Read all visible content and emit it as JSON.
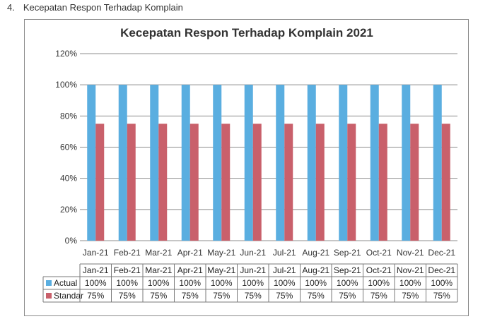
{
  "doc": {
    "number": "4.",
    "heading": "Kecepatan Respon Terhadap Komplain"
  },
  "colors": {
    "actual": "#5aaee0",
    "standar": "#c9606b",
    "grid": "#8c8c8c",
    "table_border": "#7a7a7a"
  },
  "chart_data": {
    "type": "bar",
    "title": "Kecepatan Respon Terhadap Komplain 2021",
    "xlabel": "",
    "ylabel": "",
    "categories": [
      "Jan-21",
      "Feb-21",
      "Mar-21",
      "Apr-21",
      "May-21",
      "Jun-21",
      "Jul-21",
      "Aug-21",
      "Sep-21",
      "Oct-21",
      "Nov-21",
      "Dec-21"
    ],
    "series": [
      {
        "name": "Actual",
        "values": [
          100,
          100,
          100,
          100,
          100,
          100,
          100,
          100,
          100,
          100,
          100,
          100
        ],
        "labels": [
          "100%",
          "100%",
          "100%",
          "100%",
          "100%",
          "100%",
          "100%",
          "100%",
          "100%",
          "100%",
          "100%",
          "100%"
        ]
      },
      {
        "name": "Standar",
        "values": [
          75,
          75,
          75,
          75,
          75,
          75,
          75,
          75,
          75,
          75,
          75,
          75
        ],
        "labels": [
          "75%",
          "75%",
          "75%",
          "75%",
          "75%",
          "75%",
          "75%",
          "75%",
          "75%",
          "75%",
          "75%",
          "75%"
        ]
      }
    ],
    "ylim": [
      0,
      120
    ],
    "yticks": [
      0,
      20,
      40,
      60,
      80,
      100,
      120
    ],
    "ytick_labels": [
      "0%",
      "20%",
      "40%",
      "60%",
      "80%",
      "100%",
      "120%"
    ],
    "grid": true,
    "legend": "data-table"
  }
}
